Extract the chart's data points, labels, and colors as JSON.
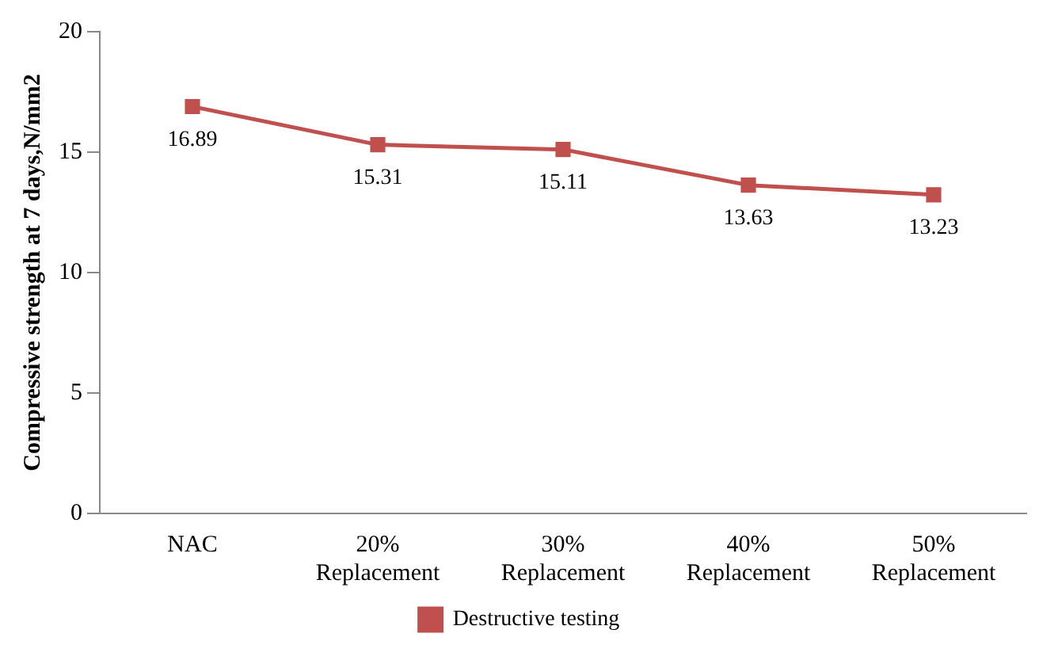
{
  "chart_data": {
    "type": "line",
    "ylabel": "Compressive strength at 7 days,N/mm2",
    "categories": [
      "NAC",
      "20% Replacement",
      "30% Replacement",
      "40% Replacement",
      "50% Replacement"
    ],
    "series": [
      {
        "name": "Destructive testing",
        "color": "#c0504d",
        "values": [
          16.89,
          15.31,
          15.11,
          13.63,
          13.23
        ]
      }
    ],
    "ylim": [
      0,
      20
    ],
    "yticks": [
      0,
      5,
      10,
      15,
      20
    ],
    "grid": false,
    "legend": "bottom",
    "marker": "square",
    "line_style": "solid",
    "data_labels": true
  }
}
